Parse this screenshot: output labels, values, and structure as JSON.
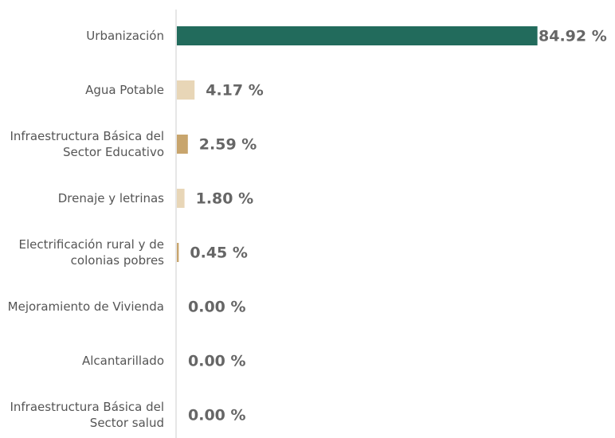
{
  "chart_data": {
    "type": "bar",
    "orientation": "horizontal",
    "categories": [
      "Urbanización",
      "Agua Potable",
      "Infraestructura Básica del Sector Educativo",
      "Drenaje y letrinas",
      "Electrificación rural y de colonias pobres",
      "Mejoramiento de Vivienda",
      "Alcantarillado",
      "Infraestructura Básica del Sector salud"
    ],
    "values": [
      84.92,
      4.17,
      2.59,
      1.8,
      0.45,
      0.0,
      0.0,
      0.0
    ],
    "value_labels": [
      "84.92 %",
      "4.17 %",
      "2.59 %",
      "1.80 %",
      "0.45 %",
      "0.00 %",
      "0.00 %",
      "0.00 %"
    ],
    "colors": [
      "#226b5c",
      "#e8d6b7",
      "#c8a56d",
      "#e8d6b7",
      "#c8a56d",
      "#e8d6b7",
      "#e8d6b7",
      "#c8a56d"
    ],
    "xlim": [
      0,
      100
    ]
  }
}
